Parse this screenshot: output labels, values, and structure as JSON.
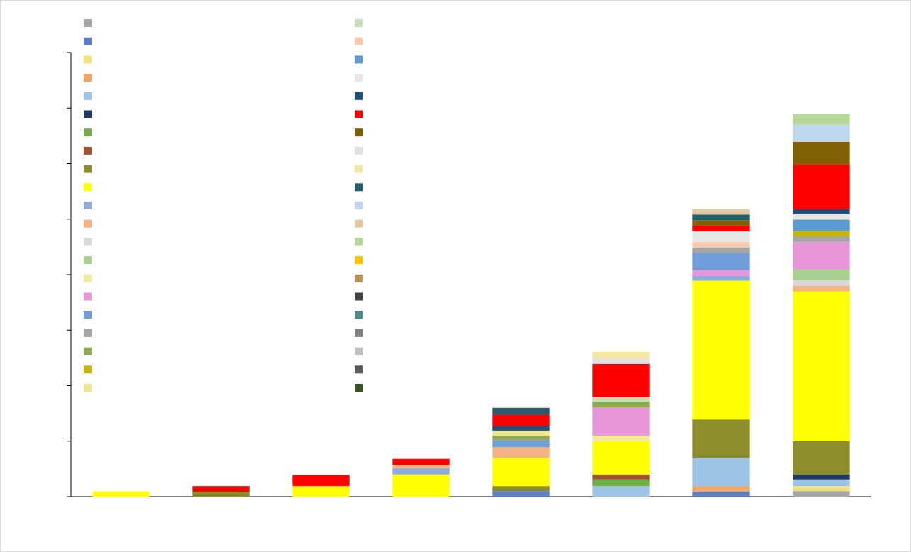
{
  "chart_data": {
    "type": "stacked_bar",
    "categories": [
      null,
      null,
      null,
      null,
      null,
      null,
      null,
      null
    ],
    "ylim": [
      0,
      8
    ],
    "yticks": [
      0,
      1,
      2,
      3,
      4,
      5,
      6,
      7,
      8
    ],
    "series": [
      {
        "color": "#a6a6a6",
        "values": [
          0,
          0,
          0,
          0,
          0,
          0,
          0,
          0.1
        ]
      },
      {
        "color": "#5b7fc0",
        "values": [
          0,
          0,
          0,
          0,
          0.1,
          0,
          0.09,
          0
        ]
      },
      {
        "color": "#f2e27a",
        "values": [
          0,
          0,
          0,
          0,
          0,
          0,
          0,
          0.09
        ]
      },
      {
        "color": "#f4a460",
        "values": [
          0,
          0,
          0,
          0,
          0,
          0,
          0.1,
          0
        ]
      },
      {
        "color": "#9dc3e6",
        "values": [
          0,
          0,
          0,
          0,
          0,
          0.19,
          0.51,
          0.12
        ]
      },
      {
        "color": "#203864",
        "values": [
          0,
          0,
          0,
          0,
          0,
          0,
          0,
          0.09
        ]
      },
      {
        "color": "#70ad47",
        "values": [
          0,
          0,
          0,
          0,
          0,
          0.12,
          0,
          0
        ]
      },
      {
        "color": "#a0522d",
        "values": [
          0,
          0,
          0,
          0,
          0,
          0.09,
          0,
          0
        ]
      },
      {
        "color": "#8c8c2a",
        "values": [
          0,
          0.09,
          0,
          0,
          0.09,
          0,
          0.69,
          0.6
        ]
      },
      {
        "color": "#ffff00",
        "values": [
          0.09,
          0,
          0.19,
          0.4,
          0.51,
          0.6,
          2.5,
          2.7
        ]
      },
      {
        "color": "#8faadc",
        "values": [
          0,
          0,
          0,
          0.11,
          0,
          0,
          0.09,
          0
        ]
      },
      {
        "color": "#f4b183",
        "values": [
          0,
          0,
          0,
          0.06,
          0.19,
          0,
          0,
          0.1
        ]
      },
      {
        "color": "#d9d9d9",
        "values": [
          0,
          0,
          0,
          0,
          0,
          0,
          0,
          0.1
        ]
      },
      {
        "color": "#a9d18e",
        "values": [
          0,
          0,
          0,
          0,
          0,
          0,
          0,
          0.19
        ]
      },
      {
        "color": "#f2eb9a",
        "values": [
          0,
          0,
          0,
          0,
          0,
          0.1,
          0,
          0
        ]
      },
      {
        "color": "#e896d8",
        "values": [
          0,
          0,
          0,
          0,
          0,
          0.51,
          0.1,
          0.5
        ]
      },
      {
        "color": "#6f9fd8",
        "values": [
          0,
          0,
          0,
          0,
          0.13,
          0,
          0.31,
          0
        ]
      },
      {
        "color": "#a5a5a5",
        "values": [
          0,
          0,
          0,
          0,
          0,
          0,
          0.1,
          0.1
        ]
      },
      {
        "color": "#8faa50",
        "values": [
          0,
          0,
          0,
          0,
          0.08,
          0.1,
          0,
          0
        ]
      },
      {
        "color": "#c8b400",
        "values": [
          0,
          0,
          0,
          0,
          0,
          0,
          0,
          0.1
        ]
      },
      {
        "color": "#f0e68c",
        "values": [
          0,
          0,
          0,
          0,
          0.09,
          0,
          0,
          0
        ]
      },
      {
        "color": "#c5e0b4",
        "values": [
          0,
          0,
          0,
          0,
          0,
          0.08,
          0,
          0
        ]
      },
      {
        "color": "#f8cbad",
        "values": [
          0,
          0,
          0,
          0,
          0,
          0,
          0.1,
          0
        ]
      },
      {
        "color": "#5b9bd5",
        "values": [
          0,
          0,
          0,
          0,
          0,
          0,
          0,
          0.2
        ]
      },
      {
        "color": "#e7e6e6",
        "values": [
          0,
          0,
          0,
          0,
          0,
          0,
          0.19,
          0.1
        ]
      },
      {
        "color": "#1f4e79",
        "values": [
          0,
          0,
          0,
          0,
          0.08,
          0,
          0,
          0.09
        ]
      },
      {
        "color": "#ff0000",
        "values": [
          0,
          0.1,
          0.2,
          0.11,
          0.2,
          0.6,
          0.1,
          0.81
        ]
      },
      {
        "color": "#806000",
        "values": [
          0,
          0,
          0,
          0,
          0,
          0,
          0.1,
          0.4
        ]
      },
      {
        "color": "#e0e0e0",
        "values": [
          0,
          0,
          0,
          0,
          0,
          0.1,
          0,
          0
        ]
      },
      {
        "color": "#f5e6a0",
        "values": [
          0,
          0,
          0,
          0,
          0,
          0.12,
          0,
          0
        ]
      },
      {
        "color": "#255e6e",
        "values": [
          0,
          0,
          0,
          0,
          0.13,
          0,
          0.1,
          0
        ]
      },
      {
        "color": "#bdd7ee",
        "values": [
          0,
          0,
          0,
          0,
          0,
          0,
          0,
          0.31
        ]
      },
      {
        "color": "#e2c79f",
        "values": [
          0,
          0,
          0,
          0,
          0,
          0,
          0.1,
          0
        ]
      },
      {
        "color": "#b5d89a",
        "values": [
          0,
          0,
          0,
          0,
          0,
          0,
          0,
          0.2
        ]
      },
      {
        "color": "#ffc000",
        "values": [
          0,
          0,
          0,
          0,
          0,
          0,
          0,
          0
        ]
      },
      {
        "color": "#c09050",
        "values": [
          0,
          0,
          0,
          0,
          0,
          0,
          0,
          0
        ]
      },
      {
        "color": "#404040",
        "values": [
          0,
          0,
          0,
          0,
          0,
          0,
          0,
          0
        ]
      },
      {
        "color": "#4a8a8a",
        "values": [
          0,
          0,
          0,
          0,
          0,
          0,
          0,
          0
        ]
      },
      {
        "color": "#808080",
        "values": [
          0,
          0,
          0,
          0,
          0,
          0,
          0,
          0
        ]
      },
      {
        "color": "#bfbfbf",
        "values": [
          0,
          0,
          0,
          0,
          0,
          0,
          0,
          0
        ]
      },
      {
        "color": "#595959",
        "values": [
          0,
          0,
          0,
          0,
          0,
          0,
          0,
          0
        ]
      },
      {
        "color": "#375623",
        "values": [
          0,
          0,
          0,
          0,
          0,
          0,
          0,
          0
        ]
      }
    ]
  }
}
